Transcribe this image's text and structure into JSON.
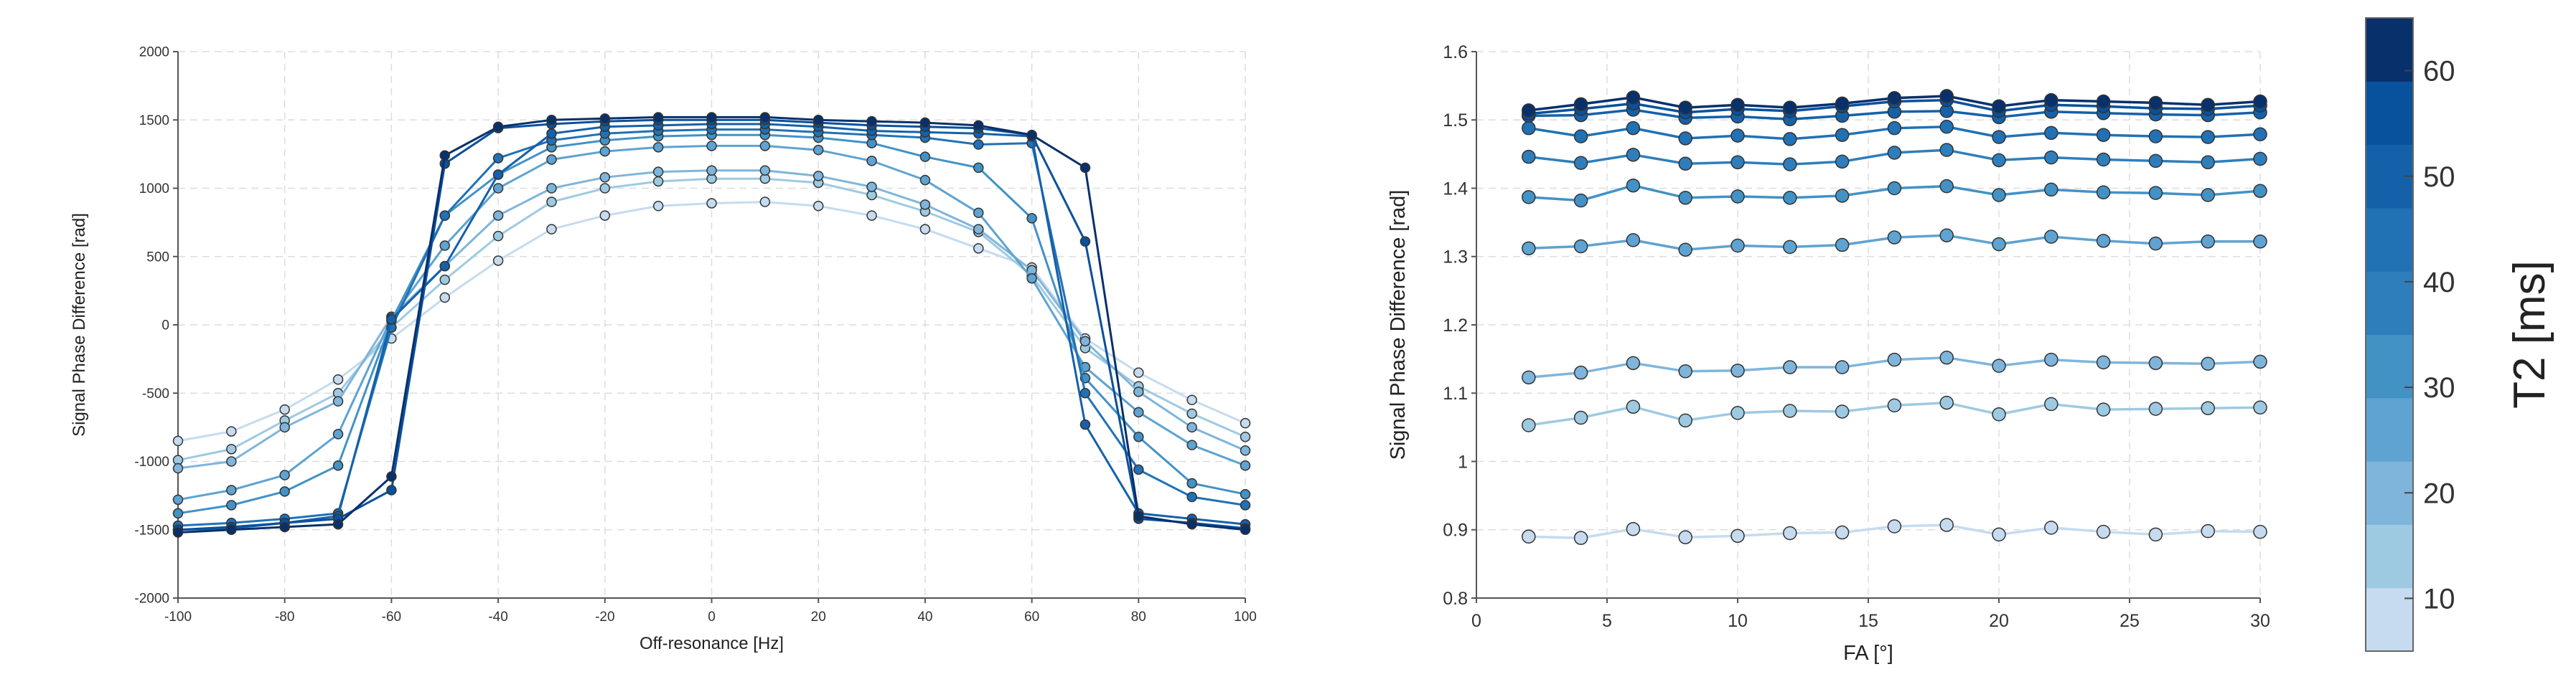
{
  "colors": {
    "series": [
      "#c6dbef",
      "#9ecae1",
      "#7fb5db",
      "#5ea3d1",
      "#4292c6",
      "#2f7ebc",
      "#2171b5",
      "#1561a9",
      "#08519c",
      "#08306b"
    ],
    "marker_edge": "#333333",
    "axis": "#555555",
    "grid": "#dddddd"
  },
  "chart_data": [
    {
      "type": "line",
      "title": "",
      "xlabel": "Off-resonance [Hz]",
      "ylabel": "Signal Phase Difference [rad]",
      "xlim": [
        -100,
        100
      ],
      "ylim": [
        -2000,
        2000
      ],
      "grid": true,
      "xticks": [
        -100,
        -80,
        -60,
        -40,
        -20,
        0,
        20,
        40,
        60,
        80,
        100
      ],
      "yticks": [
        -2000,
        -1500,
        -1000,
        -500,
        0,
        500,
        1000,
        1500,
        2000
      ],
      "x": [
        -100,
        -90,
        -80,
        -70,
        -60,
        -50,
        -40,
        -30,
        -20,
        -10,
        0,
        10,
        20,
        30,
        40,
        50,
        60,
        70,
        80,
        90,
        100
      ],
      "series": [
        {
          "name": "T2 5 ms",
          "values": [
            -850,
            -780,
            -620,
            -400,
            -100,
            200,
            470,
            700,
            800,
            870,
            890,
            900,
            870,
            800,
            700,
            560,
            420,
            -100,
            -350,
            -550,
            -720
          ]
        },
        {
          "name": "T2 10 ms",
          "values": [
            -990,
            -910,
            -700,
            -500,
            -20,
            330,
            650,
            900,
            1000,
            1050,
            1070,
            1070,
            1040,
            950,
            830,
            680,
            360,
            -170,
            -450,
            -650,
            -820
          ]
        },
        {
          "name": "T2 15 ms",
          "values": [
            -1050,
            -1000,
            -750,
            -560,
            60,
            430,
            800,
            1000,
            1080,
            1120,
            1130,
            1130,
            1090,
            1010,
            880,
            700,
            400,
            -120,
            -490,
            -750,
            -920
          ]
        },
        {
          "name": "T2 20 ms",
          "values": [
            -1280,
            -1210,
            -1100,
            -800,
            50,
            580,
            1000,
            1210,
            1270,
            1300,
            1310,
            1310,
            1280,
            1200,
            1060,
            820,
            340,
            -310,
            -640,
            -880,
            -1030
          ]
        },
        {
          "name": "T2 30 ms",
          "values": [
            -1380,
            -1320,
            -1220,
            -1030,
            30,
            800,
            1100,
            1300,
            1350,
            1380,
            1390,
            1390,
            1370,
            1330,
            1230,
            1150,
            780,
            -390,
            -820,
            -1160,
            -1240
          ]
        },
        {
          "name": "T2 40 ms",
          "values": [
            -1470,
            -1450,
            -1420,
            -1380,
            -20,
            800,
            1220,
            1350,
            1400,
            1420,
            1430,
            1430,
            1410,
            1390,
            1370,
            1320,
            1330,
            -500,
            -1060,
            -1260,
            -1320
          ]
        },
        {
          "name": "T2 50 ms",
          "values": [
            -1500,
            -1490,
            -1450,
            -1400,
            40,
            430,
            1100,
            1400,
            1450,
            1460,
            1470,
            1470,
            1450,
            1420,
            1410,
            1400,
            1380,
            -730,
            -1380,
            -1420,
            -1460
          ]
        },
        {
          "name": "T2 55 ms",
          "values": [
            -1500,
            -1480,
            -1450,
            -1420,
            -1210,
            1180,
            1440,
            1470,
            1490,
            1500,
            1500,
            1500,
            1480,
            1460,
            1450,
            1440,
            1390,
            610,
            -1420,
            -1450,
            -1490
          ]
        },
        {
          "name": "T2 60 ms",
          "values": [
            -1520,
            -1500,
            -1480,
            -1460,
            -1110,
            1240,
            1450,
            1500,
            1510,
            1520,
            1520,
            1520,
            1500,
            1490,
            1480,
            1460,
            1390,
            1150,
            -1400,
            -1460,
            -1500
          ]
        }
      ]
    },
    {
      "type": "line",
      "title": "",
      "xlabel": "FA [°]",
      "ylabel": "Signal Phase Difference [rad]",
      "xlim": [
        0,
        30
      ],
      "ylim": [
        0.8,
        1.6
      ],
      "grid": true,
      "xticks": [
        0,
        5,
        10,
        15,
        20,
        25,
        30
      ],
      "yticks": [
        0.8,
        0.9,
        1,
        1.1,
        1.2,
        1.3,
        1.4,
        1.5,
        1.6
      ],
      "x": [
        2,
        4,
        6,
        8,
        10,
        12,
        14,
        16,
        18,
        20,
        22,
        24,
        26,
        28,
        30
      ],
      "series": [
        {
          "name": "T2 5 ms",
          "values": [
            0.89,
            0.888,
            0.901,
            0.889,
            0.891,
            0.895,
            0.896,
            0.905,
            0.907,
            0.893,
            0.903,
            0.897,
            0.893,
            0.898,
            0.897
          ]
        },
        {
          "name": "T2 10 ms",
          "values": [
            1.053,
            1.064,
            1.08,
            1.06,
            1.071,
            1.074,
            1.073,
            1.082,
            1.086,
            1.069,
            1.084,
            1.076,
            1.077,
            1.078,
            1.079
          ]
        },
        {
          "name": "T2 15 ms",
          "values": [
            1.123,
            1.13,
            1.144,
            1.132,
            1.133,
            1.138,
            1.138,
            1.149,
            1.152,
            1.14,
            1.149,
            1.145,
            1.144,
            1.143,
            1.146
          ]
        },
        {
          "name": "T2 25 ms",
          "values": [
            1.312,
            1.315,
            1.324,
            1.31,
            1.316,
            1.314,
            1.317,
            1.328,
            1.331,
            1.318,
            1.329,
            1.323,
            1.319,
            1.322,
            1.322
          ]
        },
        {
          "name": "T2 35 ms",
          "values": [
            1.387,
            1.382,
            1.404,
            1.386,
            1.388,
            1.386,
            1.389,
            1.4,
            1.403,
            1.39,
            1.398,
            1.394,
            1.393,
            1.39,
            1.396
          ]
        },
        {
          "name": "T2 40 ms",
          "values": [
            1.446,
            1.437,
            1.449,
            1.436,
            1.438,
            1.435,
            1.439,
            1.452,
            1.456,
            1.441,
            1.445,
            1.442,
            1.44,
            1.438,
            1.443
          ]
        },
        {
          "name": "T2 45 ms",
          "values": [
            1.488,
            1.476,
            1.488,
            1.473,
            1.477,
            1.472,
            1.478,
            1.488,
            1.49,
            1.475,
            1.481,
            1.478,
            1.476,
            1.475,
            1.479
          ]
        },
        {
          "name": "T2 50 ms",
          "values": [
            1.506,
            1.507,
            1.515,
            1.503,
            1.505,
            1.501,
            1.506,
            1.512,
            1.513,
            1.504,
            1.512,
            1.51,
            1.508,
            1.507,
            1.511
          ]
        },
        {
          "name": "T2 55 ms",
          "values": [
            1.509,
            1.516,
            1.524,
            1.511,
            1.516,
            1.513,
            1.52,
            1.527,
            1.529,
            1.513,
            1.522,
            1.52,
            1.517,
            1.516,
            1.521
          ]
        },
        {
          "name": "T2 60 ms",
          "values": [
            1.514,
            1.523,
            1.533,
            1.518,
            1.522,
            1.518,
            1.524,
            1.532,
            1.535,
            1.52,
            1.529,
            1.527,
            1.525,
            1.522,
            1.527
          ]
        }
      ]
    },
    {
      "type": "colorbar",
      "label": "T2 [ms]",
      "range": [
        5,
        65
      ],
      "ticks": [
        10,
        20,
        30,
        40,
        50,
        60
      ]
    }
  ]
}
